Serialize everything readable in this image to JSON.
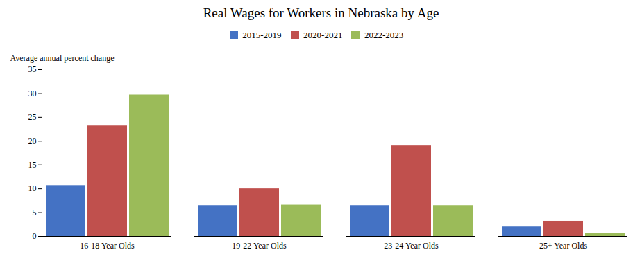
{
  "chart_data": {
    "type": "bar",
    "title": "Real Wages for Workers in Nebraska by Age",
    "ylabel": "Average annual percent change",
    "categories": [
      "16-18 Year Olds",
      "19-22 Year Olds",
      "23-24 Year Olds",
      "25+ Year Olds"
    ],
    "series": [
      {
        "name": "2015-2019",
        "color": "#4472C4",
        "values": [
          10.7,
          6.5,
          6.5,
          2.0
        ]
      },
      {
        "name": "2020-2021",
        "color": "#C0504D",
        "values": [
          23.2,
          10.0,
          19.0,
          3.2
        ]
      },
      {
        "name": "2022-2023",
        "color": "#9BBB59",
        "values": [
          29.7,
          6.6,
          6.5,
          0.6
        ]
      }
    ],
    "ylim": [
      0,
      35
    ],
    "yticks": [
      0,
      5,
      10,
      15,
      20,
      25,
      30,
      35
    ],
    "grid": false,
    "legend": "top"
  }
}
